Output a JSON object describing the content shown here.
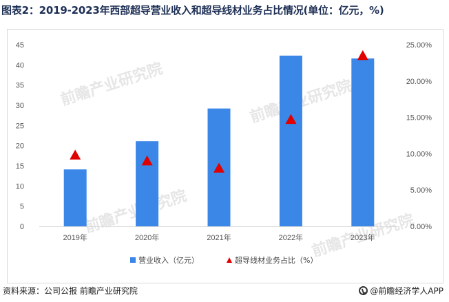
{
  "title": "图表2：2019-2023年西部超导营业收入和超导线材业务占比情况(单位：亿元，%)",
  "watermark": "前瞻产业研究院",
  "footer": {
    "source": "资料来源：公司公报 前瞻产业研究院",
    "brand": "@前瞻经济学人APP"
  },
  "colors": {
    "bar": "#3a87e8",
    "marker": "#e00000",
    "axis": "#d9d9d9"
  },
  "chart_data": {
    "type": "bar",
    "categories": [
      "2019年",
      "2020年",
      "2021年",
      "2022年",
      "2023年"
    ],
    "series": [
      {
        "name": "营业收入（亿元）",
        "type": "bar",
        "axis": "left",
        "values": [
          14.1,
          21.1,
          29.2,
          42.3,
          41.6
        ]
      },
      {
        "name": "超导线材业务占比（%）",
        "type": "scatter",
        "marker": "triangle",
        "axis": "right",
        "values": [
          9.8,
          9.0,
          8.0,
          14.7,
          23.5
        ]
      }
    ],
    "y_left": {
      "ylim": [
        0,
        45
      ],
      "ticks": [
        "0",
        "5",
        "10",
        "15",
        "20",
        "25",
        "30",
        "35",
        "40",
        "45"
      ]
    },
    "y_right": {
      "ylim": [
        0,
        25
      ],
      "ticks": [
        "0.00%",
        "5.00%",
        "10.00%",
        "15.00%",
        "20.00%",
        "25.00%"
      ]
    },
    "legend": "bottom",
    "grid": false
  }
}
